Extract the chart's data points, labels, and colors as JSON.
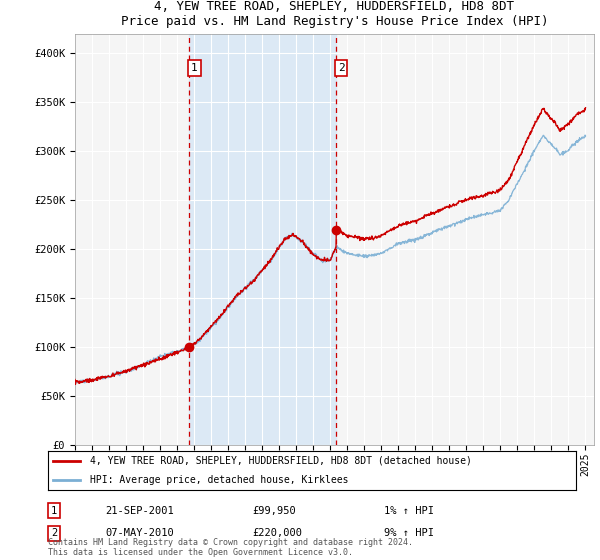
{
  "title": "4, YEW TREE ROAD, SHEPLEY, HUDDERSFIELD, HD8 8DT",
  "subtitle": "Price paid vs. HM Land Registry's House Price Index (HPI)",
  "legend_line1": "4, YEW TREE ROAD, SHEPLEY, HUDDERSFIELD, HD8 8DT (detached house)",
  "legend_line2": "HPI: Average price, detached house, Kirklees",
  "annotation1_date": "21-SEP-2001",
  "annotation1_price": "£99,950",
  "annotation1_hpi": "1% ↑ HPI",
  "annotation2_date": "07-MAY-2010",
  "annotation2_price": "£220,000",
  "annotation2_hpi": "9% ↑ HPI",
  "footnote": "Contains HM Land Registry data © Crown copyright and database right 2024.\nThis data is licensed under the Open Government Licence v3.0.",
  "ylim": [
    0,
    420000
  ],
  "yticks": [
    0,
    50000,
    100000,
    150000,
    200000,
    250000,
    300000,
    350000,
    400000
  ],
  "ytick_labels": [
    "£0",
    "£50K",
    "£100K",
    "£150K",
    "£200K",
    "£250K",
    "£300K",
    "£350K",
    "£400K"
  ],
  "plot_bg": "#f0f0f0",
  "shade_color": "#dce9f5",
  "hpi_color": "#7bafd4",
  "price_color": "#cc0000",
  "vline_color": "#cc0000",
  "anno_x1": 2001.72,
  "anno_x2": 2010.35,
  "sale1_y": 99950,
  "sale2_y": 220000,
  "xlim_start": 1995.0,
  "xlim_end": 2025.5
}
